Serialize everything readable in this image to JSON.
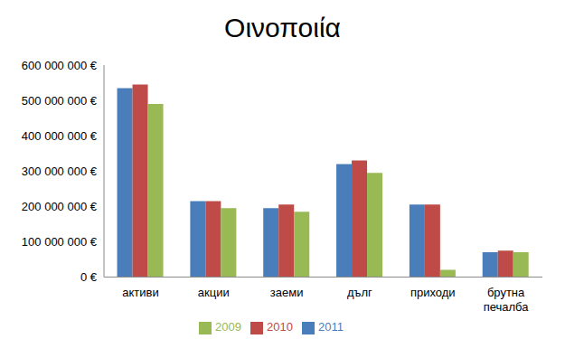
{
  "chart_data": {
    "type": "bar",
    "title": "Οινοποιία",
    "categories": [
      "активи",
      "акции",
      "заеми",
      "дълг",
      "приходи",
      "брутна печалба"
    ],
    "series": [
      {
        "name": "2011",
        "color": "#4a7ebb",
        "values": [
          535000000,
          215000000,
          195000000,
          320000000,
          205000000,
          70000000
        ]
      },
      {
        "name": "2010",
        "color": "#be4b48",
        "values": [
          545000000,
          215000000,
          205000000,
          330000000,
          205000000,
          75000000
        ]
      },
      {
        "name": "2009",
        "color": "#98b954",
        "values": [
          490000000,
          195000000,
          185000000,
          295000000,
          20000000,
          70000000
        ]
      }
    ],
    "ylim": [
      0,
      600000000
    ],
    "yticks": [
      {
        "value": 0,
        "label": "0 €"
      },
      {
        "value": 100000000,
        "label": "100 000 000 €"
      },
      {
        "value": 200000000,
        "label": "200 000 000 €"
      },
      {
        "value": 300000000,
        "label": "300 000 000 €"
      },
      {
        "value": 400000000,
        "label": "400 000 000 €"
      },
      {
        "value": 500000000,
        "label": "500 000 000 €"
      },
      {
        "value": 600000000,
        "label": "600 000 000 €"
      }
    ],
    "grid": false,
    "legend": "bottom"
  }
}
